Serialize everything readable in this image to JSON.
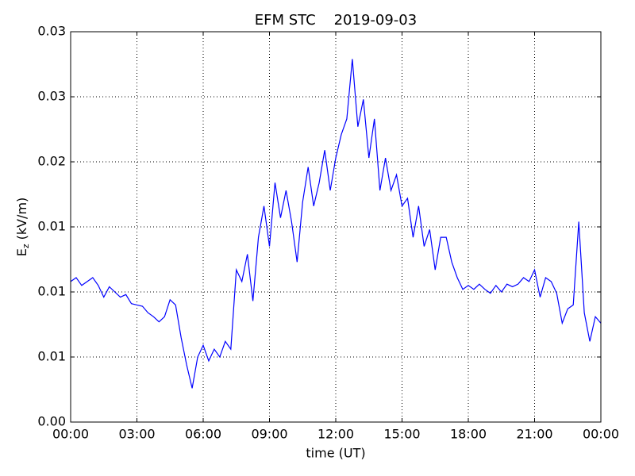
{
  "chart_data": {
    "type": "line",
    "title": "EFM STC    2019-09-03",
    "xlabel": "time (UT)",
    "ylabel": {
      "base": "E",
      "sub": "z",
      "unit": "(kV/m)"
    },
    "xlim": [
      0,
      24
    ],
    "xticks": [
      {
        "value": 0,
        "label": "00:00"
      },
      {
        "value": 3,
        "label": "03:00"
      },
      {
        "value": 6,
        "label": "06:00"
      },
      {
        "value": 9,
        "label": "09:00"
      },
      {
        "value": 12,
        "label": "12:00"
      },
      {
        "value": 15,
        "label": "15:00"
      },
      {
        "value": 18,
        "label": "18:00"
      },
      {
        "value": 21,
        "label": "21:00"
      },
      {
        "value": 24,
        "label": "00:00"
      }
    ],
    "ylim": [
      0,
      0.03
    ],
    "yticks": [
      {
        "value": 0,
        "label": "0.00"
      },
      {
        "value": 0.005,
        "label": "0.01"
      },
      {
        "value": 0.01,
        "label": "0.01"
      },
      {
        "value": 0.015,
        "label": "0.01"
      },
      {
        "value": 0.02,
        "label": "0.02"
      },
      {
        "value": 0.025,
        "label": "0.03"
      },
      {
        "value": 0.03,
        "label": "0.03"
      }
    ],
    "grid": true,
    "series": [
      {
        "color": "#0000ff",
        "x": [
          0,
          0.25,
          0.5,
          0.75,
          1,
          1.25,
          1.5,
          1.75,
          2,
          2.25,
          2.5,
          2.75,
          3,
          3.25,
          3.5,
          3.75,
          4,
          4.25,
          4.5,
          4.75,
          5,
          5.25,
          5.5,
          5.75,
          6,
          6.25,
          6.5,
          6.75,
          7,
          7.25,
          7.5,
          7.75,
          8,
          8.25,
          8.5,
          8.75,
          9,
          9.25,
          9.5,
          9.75,
          10,
          10.25,
          10.5,
          10.75,
          11,
          11.25,
          11.5,
          11.75,
          12,
          12.25,
          12.5,
          12.75,
          13,
          13.25,
          13.5,
          13.75,
          14,
          14.25,
          14.5,
          14.75,
          15,
          15.25,
          15.5,
          15.75,
          16,
          16.25,
          16.5,
          16.75,
          17,
          17.25,
          17.5,
          17.75,
          18,
          18.25,
          18.5,
          18.75,
          19,
          19.25,
          19.5,
          19.75,
          20,
          20.25,
          20.5,
          20.75,
          21,
          21.25,
          21.5,
          21.75,
          22,
          22.25,
          22.5,
          22.75,
          23,
          23.25,
          23.5,
          23.75,
          24
        ],
        "values": [
          0.0108,
          0.0111,
          0.0105,
          0.0108,
          0.0111,
          0.0105,
          0.0096,
          0.0104,
          0.01,
          0.0096,
          0.0098,
          0.0091,
          0.009,
          0.0089,
          0.0084,
          0.0081,
          0.0077,
          0.0081,
          0.0094,
          0.009,
          0.0065,
          0.0044,
          0.0026,
          0.005,
          0.0059,
          0.0047,
          0.0056,
          0.005,
          0.0062,
          0.0056,
          0.0117,
          0.0108,
          0.0129,
          0.0093,
          0.0142,
          0.0166,
          0.0135,
          0.0184,
          0.0157,
          0.0178,
          0.0154,
          0.0123,
          0.0169,
          0.0196,
          0.0166,
          0.0184,
          0.0209,
          0.0178,
          0.0203,
          0.0221,
          0.0233,
          0.0279,
          0.0227,
          0.0248,
          0.0203,
          0.0233,
          0.0178,
          0.0203,
          0.0178,
          0.019,
          0.0166,
          0.0172,
          0.0142,
          0.0166,
          0.0135,
          0.0148,
          0.0117,
          0.0142,
          0.0142,
          0.0123,
          0.0111,
          0.0102,
          0.0105,
          0.0102,
          0.0106,
          0.0102,
          0.0099,
          0.0105,
          0.01,
          0.0106,
          0.0104,
          0.0106,
          0.0111,
          0.0108,
          0.0117,
          0.0096,
          0.0111,
          0.0108,
          0.0099,
          0.0076,
          0.0087,
          0.009,
          0.0154,
          0.0084,
          0.0062,
          0.0081,
          0.0076
        ]
      }
    ]
  }
}
